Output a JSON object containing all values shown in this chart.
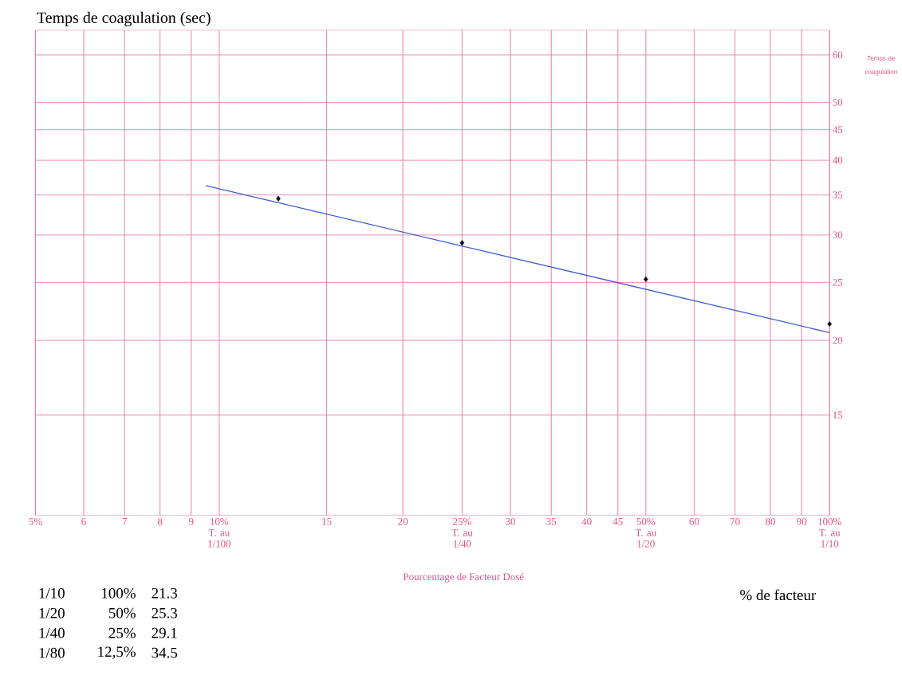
{
  "chart_data": {
    "type": "scatter",
    "title": "Temps de coagulation (sec)",
    "xlabel": "Pourcentage de Facteur Dosé",
    "ylabel": "Temps de coagulation",
    "log": "xy",
    "grid": true,
    "xlim": [
      5,
      100
    ],
    "ylim": [
      10.2,
      66
    ],
    "xticks": [
      {
        "value": 5,
        "label": "5%"
      },
      6,
      7,
      8,
      9,
      {
        "value": 10,
        "label": "10% T. au 1/100"
      },
      15,
      20,
      {
        "value": 25,
        "label": "25% T. au 1/40"
      },
      30,
      35,
      40,
      45,
      {
        "value": 50,
        "label": "50% T. au 1/20"
      },
      60,
      70,
      80,
      90,
      {
        "value": 100,
        "label": "100% T. au 1/10"
      }
    ],
    "yticks": [
      15,
      20,
      25,
      30,
      35,
      40,
      45,
      50,
      60
    ],
    "series": [
      {
        "color": "#111122",
        "marker": "diamond",
        "x": [
          12.5,
          25,
          50,
          100
        ],
        "values": [
          34.5,
          29.1,
          25.3,
          21.3
        ]
      },
      {
        "type": "line",
        "color": "#3f5fd0",
        "x": [
          9.5,
          100
        ],
        "values": [
          36.3,
          20.6
        ]
      }
    ],
    "annotations": [
      "% de facteur",
      "1/10",
      "100%",
      "21.3",
      "1/20",
      "50%",
      "25.3",
      "1/40",
      "25%",
      "29.1",
      "1/80",
      "12,5%",
      "34.5"
    ]
  }
}
